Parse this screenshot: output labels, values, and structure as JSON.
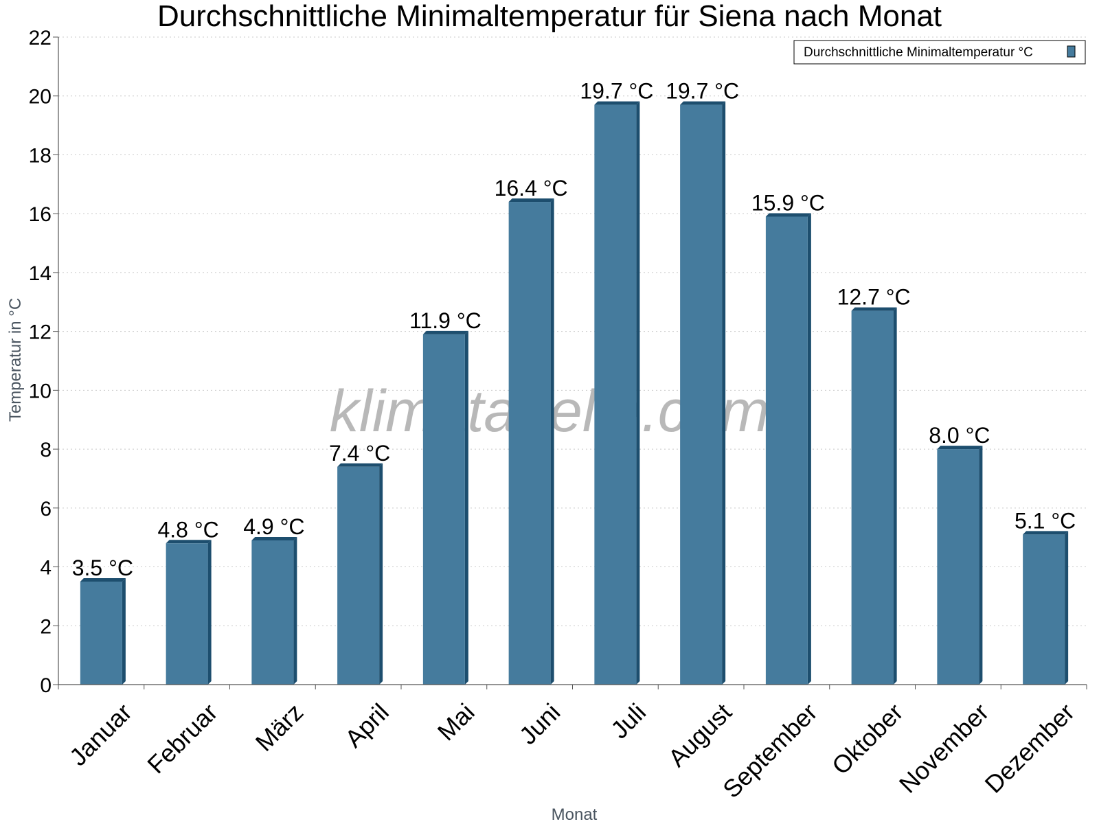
{
  "chart_data": {
    "type": "bar",
    "title": "Durchschnittliche Minimaltemperatur für Siena nach Monat",
    "xlabel": "Monat",
    "ylabel": "Temperatur in °C",
    "ylim": [
      0,
      22
    ],
    "yticks": [
      0,
      2,
      4,
      6,
      8,
      10,
      12,
      14,
      16,
      18,
      20,
      22
    ],
    "grid": "horizontal dotted",
    "legend_position": "top-right",
    "categories": [
      "Januar",
      "Februar",
      "März",
      "April",
      "Mai",
      "Juni",
      "Juli",
      "August",
      "September",
      "Oktober",
      "November",
      "Dezember"
    ],
    "series": [
      {
        "name": "Durchschnittliche Minimaltemperatur °C",
        "color": "#457b9d",
        "values": [
          3.5,
          4.8,
          4.9,
          7.4,
          11.9,
          16.4,
          19.7,
          19.7,
          15.9,
          12.7,
          8.0,
          5.1
        ],
        "data_labels": [
          "3.5 °C",
          "4.8 °C",
          "4.9 °C",
          "7.4 °C",
          "11.9 °C",
          "16.4 °C",
          "19.7 °C",
          "19.7 °C",
          "15.9 °C",
          "12.7 °C",
          "8.0 °C",
          "5.1 °C"
        ]
      }
    ]
  },
  "watermark": "klimatabelle.com",
  "colors": {
    "bar_face": "#457b9d",
    "bar_side": "#1d4e6e",
    "grid": "#c8c8c8",
    "axis": "#555555"
  }
}
